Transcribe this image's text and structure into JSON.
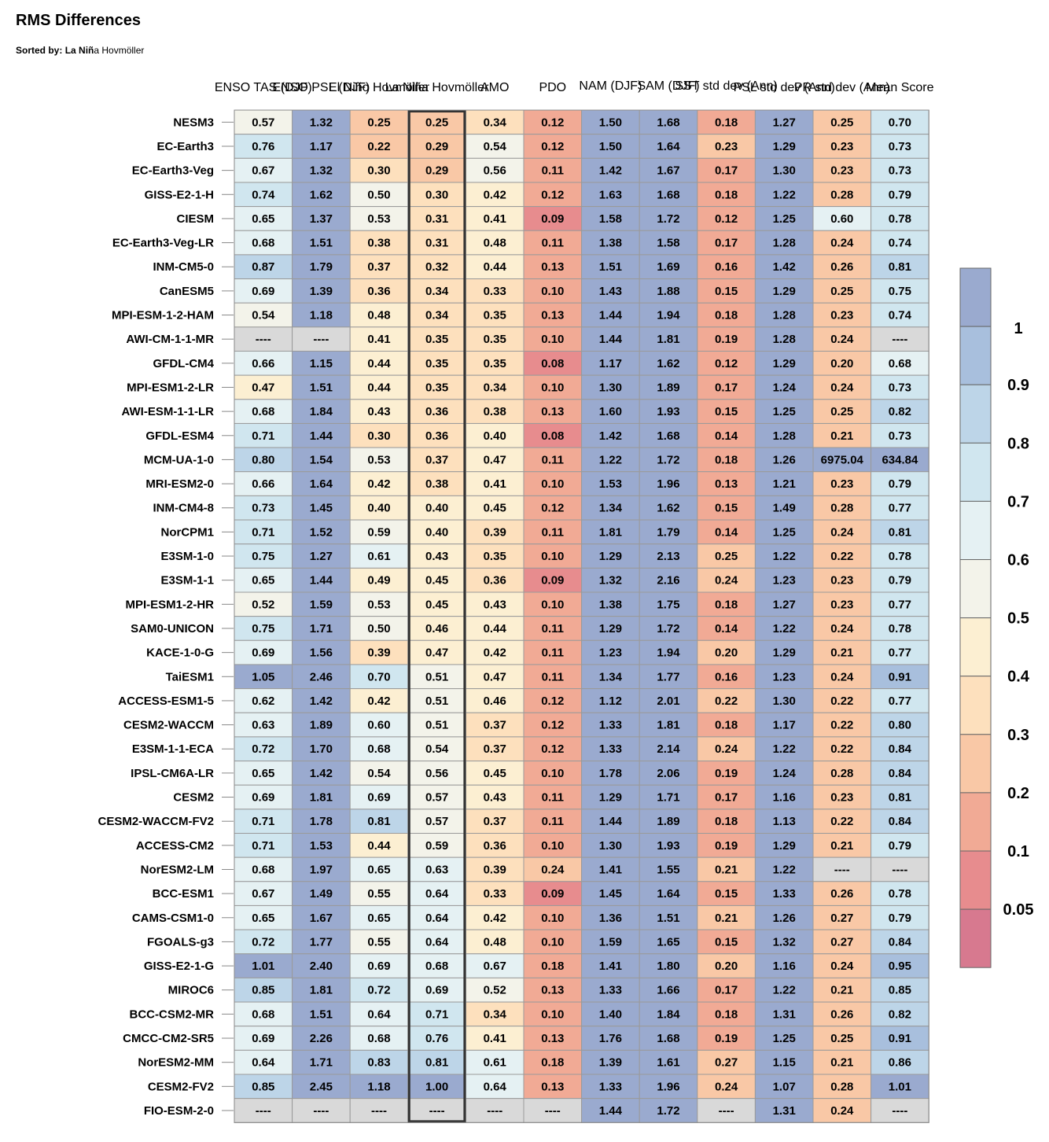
{
  "title": "RMS Differences",
  "subtitle_label": "Sorted by:",
  "subtitle_bold": "La Niñ",
  "subtitle_rest": "a Hovmöller",
  "missing_text": "----",
  "chart_data": {
    "type": "heatmap",
    "title": "RMS Differences",
    "columns": [
      "ENSO TAS (DJF)",
      "ENSO PSL (DJF)",
      "El Niño Hovmöller",
      "La Niña Hovmöller",
      "AMO",
      "PDO",
      "NAM (DJF)",
      "SAM (DJF)",
      "SST std dev (Ann)",
      "PSL std dev (Ann)",
      "PR std dev (Ann)",
      "Mean Score"
    ],
    "column_labels_visible": [
      "ENSO TAS (DJF)",
      "ENSO PSL (DJF)",
      "El Niño Hovmöller",
      "La Niña Hovmöller",
      "AMO",
      "PDO",
      "NAM (DJF)",
      "SAM (DJF)",
      "SST std dev (Ann)",
      "PSL std dev (Ann)",
      "PR std dev (Ann)",
      "Mean Score"
    ],
    "highlighted_column": "La Niña Hovmöller",
    "rows": [
      "NESM3",
      "EC-Earth3",
      "EC-Earth3-Veg",
      "GISS-E2-1-H",
      "CIESM",
      "EC-Earth3-Veg-LR",
      "INM-CM5-0",
      "CanESM5",
      "MPI-ESM-1-2-HAM",
      "AWI-CM-1-1-MR",
      "GFDL-CM4",
      "MPI-ESM1-2-LR",
      "AWI-ESM-1-1-LR",
      "GFDL-ESM4",
      "MCM-UA-1-0",
      "MRI-ESM2-0",
      "INM-CM4-8",
      "NorCPM1",
      "E3SM-1-0",
      "E3SM-1-1",
      "MPI-ESM1-2-HR",
      "SAM0-UNICON",
      "KACE-1-0-G",
      "TaiESM1",
      "ACCESS-ESM1-5",
      "CESM2-WACCM",
      "E3SM-1-1-ECA",
      "IPSL-CM6A-LR",
      "CESM2",
      "CESM2-WACCM-FV2",
      "ACCESS-CM2",
      "NorESM2-LM",
      "BCC-ESM1",
      "CAMS-CSM1-0",
      "FGOALS-g3",
      "GISS-E2-1-G",
      "MIROC6",
      "BCC-CSM2-MR",
      "CMCC-CM2-SR5",
      "NorESM2-MM",
      "CESM2-FV2",
      "FIO-ESM-2-0"
    ],
    "values": [
      [
        0.57,
        1.32,
        0.25,
        0.25,
        0.34,
        0.12,
        1.5,
        1.68,
        0.18,
        1.27,
        0.25,
        0.7
      ],
      [
        0.76,
        1.17,
        0.22,
        0.29,
        0.54,
        0.12,
        1.5,
        1.64,
        0.23,
        1.29,
        0.23,
        0.73
      ],
      [
        0.67,
        1.32,
        0.3,
        0.29,
        0.56,
        0.11,
        1.42,
        1.67,
        0.17,
        1.3,
        0.23,
        0.73
      ],
      [
        0.74,
        1.62,
        0.5,
        0.3,
        0.42,
        0.12,
        1.63,
        1.68,
        0.18,
        1.22,
        0.28,
        0.79
      ],
      [
        0.65,
        1.37,
        0.53,
        0.31,
        0.41,
        0.09,
        1.58,
        1.72,
        0.12,
        1.25,
        0.6,
        0.78
      ],
      [
        0.68,
        1.51,
        0.38,
        0.31,
        0.48,
        0.11,
        1.38,
        1.58,
        0.17,
        1.28,
        0.24,
        0.74
      ],
      [
        0.87,
        1.79,
        0.37,
        0.32,
        0.44,
        0.13,
        1.51,
        1.69,
        0.16,
        1.42,
        0.26,
        0.81
      ],
      [
        0.69,
        1.39,
        0.36,
        0.34,
        0.33,
        0.1,
        1.43,
        1.88,
        0.15,
        1.29,
        0.25,
        0.75
      ],
      [
        0.54,
        1.18,
        0.48,
        0.34,
        0.35,
        0.13,
        1.44,
        1.94,
        0.18,
        1.28,
        0.23,
        0.74
      ],
      [
        null,
        null,
        0.41,
        0.35,
        0.35,
        0.1,
        1.44,
        1.81,
        0.19,
        1.28,
        0.24,
        null
      ],
      [
        0.66,
        1.15,
        0.44,
        0.35,
        0.35,
        0.08,
        1.17,
        1.62,
        0.12,
        1.29,
        0.2,
        0.68
      ],
      [
        0.47,
        1.51,
        0.44,
        0.35,
        0.34,
        0.1,
        1.3,
        1.89,
        0.17,
        1.24,
        0.24,
        0.73
      ],
      [
        0.68,
        1.84,
        0.43,
        0.36,
        0.38,
        0.13,
        1.6,
        1.93,
        0.15,
        1.25,
        0.25,
        0.82
      ],
      [
        0.71,
        1.44,
        0.3,
        0.36,
        0.4,
        0.08,
        1.42,
        1.68,
        0.14,
        1.28,
        0.21,
        0.73
      ],
      [
        0.8,
        1.54,
        0.53,
        0.37,
        0.47,
        0.11,
        1.22,
        1.72,
        0.18,
        1.26,
        6975.04,
        634.84
      ],
      [
        0.66,
        1.64,
        0.42,
        0.38,
        0.41,
        0.1,
        1.53,
        1.96,
        0.13,
        1.21,
        0.23,
        0.79
      ],
      [
        0.73,
        1.45,
        0.4,
        0.4,
        0.45,
        0.12,
        1.34,
        1.62,
        0.15,
        1.49,
        0.28,
        0.77
      ],
      [
        0.71,
        1.52,
        0.59,
        0.4,
        0.39,
        0.11,
        1.81,
        1.79,
        0.14,
        1.25,
        0.24,
        0.81
      ],
      [
        0.75,
        1.27,
        0.61,
        0.43,
        0.35,
        0.1,
        1.29,
        2.13,
        0.25,
        1.22,
        0.22,
        0.78
      ],
      [
        0.65,
        1.44,
        0.49,
        0.45,
        0.36,
        0.09,
        1.32,
        2.16,
        0.24,
        1.23,
        0.23,
        0.79
      ],
      [
        0.52,
        1.59,
        0.53,
        0.45,
        0.43,
        0.1,
        1.38,
        1.75,
        0.18,
        1.27,
        0.23,
        0.77
      ],
      [
        0.75,
        1.71,
        0.5,
        0.46,
        0.44,
        0.11,
        1.29,
        1.72,
        0.14,
        1.22,
        0.24,
        0.78
      ],
      [
        0.69,
        1.56,
        0.39,
        0.47,
        0.42,
        0.11,
        1.23,
        1.94,
        0.2,
        1.29,
        0.21,
        0.77
      ],
      [
        1.05,
        2.46,
        0.7,
        0.51,
        0.47,
        0.11,
        1.34,
        1.77,
        0.16,
        1.23,
        0.24,
        0.91
      ],
      [
        0.62,
        1.42,
        0.42,
        0.51,
        0.46,
        0.12,
        1.12,
        2.01,
        0.22,
        1.3,
        0.22,
        0.77
      ],
      [
        0.63,
        1.89,
        0.6,
        0.51,
        0.37,
        0.12,
        1.33,
        1.81,
        0.18,
        1.17,
        0.22,
        0.8
      ],
      [
        0.72,
        1.7,
        0.68,
        0.54,
        0.37,
        0.12,
        1.33,
        2.14,
        0.24,
        1.22,
        0.22,
        0.84
      ],
      [
        0.65,
        1.42,
        0.54,
        0.56,
        0.45,
        0.1,
        1.78,
        2.06,
        0.19,
        1.24,
        0.28,
        0.84
      ],
      [
        0.69,
        1.81,
        0.69,
        0.57,
        0.43,
        0.11,
        1.29,
        1.71,
        0.17,
        1.16,
        0.23,
        0.81
      ],
      [
        0.71,
        1.78,
        0.81,
        0.57,
        0.37,
        0.11,
        1.44,
        1.89,
        0.18,
        1.13,
        0.22,
        0.84
      ],
      [
        0.71,
        1.53,
        0.44,
        0.59,
        0.36,
        0.1,
        1.3,
        1.93,
        0.19,
        1.29,
        0.21,
        0.79
      ],
      [
        0.68,
        1.97,
        0.65,
        0.63,
        0.39,
        0.24,
        1.41,
        1.55,
        0.21,
        1.22,
        null,
        null
      ],
      [
        0.67,
        1.49,
        0.55,
        0.64,
        0.33,
        0.09,
        1.45,
        1.64,
        0.15,
        1.33,
        0.26,
        0.78
      ],
      [
        0.65,
        1.67,
        0.65,
        0.64,
        0.42,
        0.1,
        1.36,
        1.51,
        0.21,
        1.26,
        0.27,
        0.79
      ],
      [
        0.72,
        1.77,
        0.55,
        0.64,
        0.48,
        0.1,
        1.59,
        1.65,
        0.15,
        1.32,
        0.27,
        0.84
      ],
      [
        1.01,
        2.4,
        0.69,
        0.68,
        0.67,
        0.18,
        1.41,
        1.8,
        0.2,
        1.16,
        0.24,
        0.95
      ],
      [
        0.85,
        1.81,
        0.72,
        0.69,
        0.52,
        0.13,
        1.33,
        1.66,
        0.17,
        1.22,
        0.21,
        0.85
      ],
      [
        0.68,
        1.51,
        0.64,
        0.71,
        0.34,
        0.1,
        1.4,
        1.84,
        0.18,
        1.31,
        0.26,
        0.82
      ],
      [
        0.69,
        2.26,
        0.68,
        0.76,
        0.41,
        0.13,
        1.76,
        1.68,
        0.19,
        1.25,
        0.25,
        0.91
      ],
      [
        0.64,
        1.71,
        0.83,
        0.81,
        0.61,
        0.18,
        1.39,
        1.61,
        0.27,
        1.15,
        0.21,
        0.86
      ],
      [
        0.85,
        2.45,
        1.18,
        1.0,
        0.64,
        0.13,
        1.33,
        1.96,
        0.24,
        1.07,
        0.28,
        1.01
      ],
      [
        null,
        null,
        null,
        null,
        null,
        null,
        1.44,
        1.72,
        null,
        1.31,
        0.24,
        null
      ]
    ],
    "colorbar": {
      "labels": [
        "1",
        "0.9",
        "0.8",
        "0.7",
        "0.6",
        "0.5",
        "0.4",
        "0.3",
        "0.2",
        "0.1",
        "0.05"
      ],
      "colors": [
        "#9aaacf",
        "#a8bfdd",
        "#bdd5e8",
        "#d0e6ef",
        "#e5f1f3",
        "#f3f3ea",
        "#fcefd2",
        "#fde0bd",
        "#f9c8a6",
        "#f1aa95",
        "#e78c8e",
        "#d7798f"
      ]
    },
    "missing_color": "#d9d9d9"
  }
}
